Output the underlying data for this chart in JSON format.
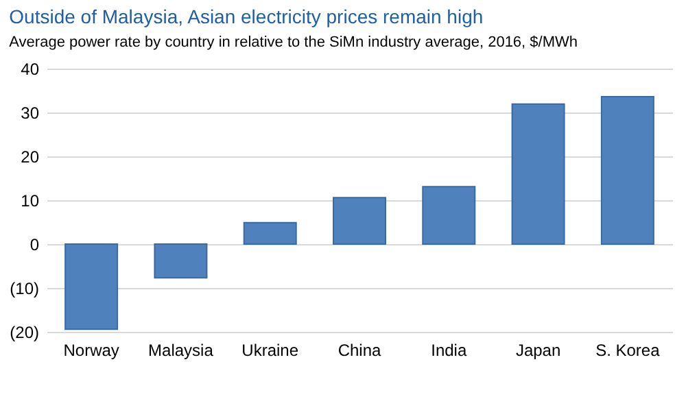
{
  "chart_data": {
    "type": "bar",
    "title": "Outside of Malaysia, Asian electricity prices remain high",
    "subtitle": "Average  power rate by country in relative to the SiMn industry average,  2016, $/MWh",
    "categories": [
      "Norway",
      "Malaysia",
      "Ukraine",
      "China",
      "India",
      "Japan",
      "S. Korea"
    ],
    "values": [
      -19.4,
      -7.7,
      4.9,
      10.6,
      13.1,
      31.9,
      33.6
    ],
    "color": "#4f81bd",
    "ylim": [
      -20,
      40
    ],
    "yticks": [
      {
        "value": -20,
        "label": "(20)"
      },
      {
        "value": -10,
        "label": "(10)"
      },
      0,
      10,
      20,
      30,
      40
    ],
    "grid": "y"
  }
}
